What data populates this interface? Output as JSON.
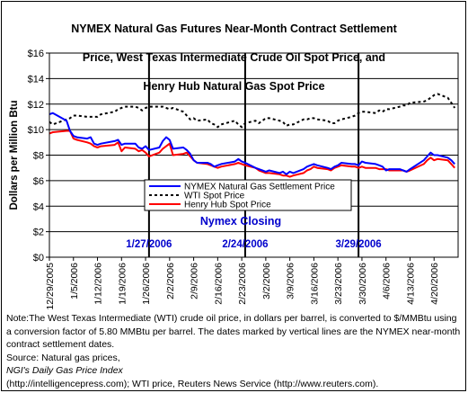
{
  "title_lines": [
    "NYMEX Natural Gas Futures Near-Month Contract Settlement",
    "Price, West Texas Intermediate Crude Oil Spot Price, and",
    "Henry Hub Natural Gas Spot Price"
  ],
  "note": "Note:The West Texas Intermediate (WTI) crude oil price, in dollars per barrel,  is converted to $/MMBtu using a conversion factor of 5.80 MMBtu per barrel.  The dates marked by vertical lines are the NYMEX near-month contract settlement dates.",
  "source": {
    "prefix": "Source: Natural gas prices, ",
    "italic": "NGI's Daily Gas Price Index",
    "suffix": " (http://intelligencepress.com); WTI price, Reuters News Service (http://www.reuters.com)."
  },
  "chart_data": {
    "type": "line",
    "ylabel": "Dollars per Million Btu",
    "ylim": [
      0,
      16
    ],
    "ytick_labels": [
      "$0",
      "$2",
      "$4",
      "$6",
      "$8",
      "$10",
      "$12",
      "$14",
      "$16"
    ],
    "xtick_labels": [
      "12/29/2005",
      "1/5/2006",
      "1/12/2006",
      "1/19/2006",
      "1/26/2006",
      "2/2/2006",
      "2/9/2006",
      "2/16/2006",
      "2/23/2006",
      "3/2/2006",
      "3/9/2006",
      "3/16/2006",
      "3/23/2006",
      "3/30/2006",
      "4/6/2006",
      "4/13/2006",
      "4/20/2006"
    ],
    "closing_label": "Nymex Closing",
    "closing_dates": [
      "1/27/2006",
      "2/24/2006",
      "3/29/2006"
    ],
    "grid": "horizontal",
    "legend_position": "lower-center",
    "colors": {
      "nymex": "#0000ff",
      "wti": "#000000",
      "henry": "#ff0000",
      "closing_text": "#0000cc"
    },
    "series": [
      {
        "name": "NYMEX Natural Gas Settlement Price",
        "style": "solid",
        "points": [
          [
            "12/29/2005",
            11.2
          ],
          [
            "12/30/2005",
            11.3
          ],
          [
            "1/3/2006",
            10.7
          ],
          [
            "1/4/2006",
            9.9
          ],
          [
            "1/5/2006",
            9.5
          ],
          [
            "1/6/2006",
            9.4
          ],
          [
            "1/9/2006",
            9.3
          ],
          [
            "1/10/2006",
            9.4
          ],
          [
            "1/11/2006",
            8.9
          ],
          [
            "1/12/2006",
            8.8
          ],
          [
            "1/13/2006",
            8.9
          ],
          [
            "1/17/2006",
            9.1
          ],
          [
            "1/18/2006",
            9.2
          ],
          [
            "1/19/2006",
            8.8
          ],
          [
            "1/20/2006",
            8.9
          ],
          [
            "1/23/2006",
            8.9
          ],
          [
            "1/24/2006",
            8.6
          ],
          [
            "1/25/2006",
            8.5
          ],
          [
            "1/26/2006",
            8.7
          ],
          [
            "1/27/2006",
            8.4
          ],
          [
            "1/30/2006",
            8.6
          ],
          [
            "1/31/2006",
            9.1
          ],
          [
            "2/1/2006",
            9.4
          ],
          [
            "2/2/2006",
            9.2
          ],
          [
            "2/3/2006",
            8.5
          ],
          [
            "2/6/2006",
            8.6
          ],
          [
            "2/7/2006",
            8.4
          ],
          [
            "2/8/2006",
            8.1
          ],
          [
            "2/9/2006",
            7.6
          ],
          [
            "2/10/2006",
            7.4
          ],
          [
            "2/13/2006",
            7.4
          ],
          [
            "2/14/2006",
            7.3
          ],
          [
            "2/15/2006",
            7.1
          ],
          [
            "2/16/2006",
            7.2
          ],
          [
            "2/17/2006",
            7.3
          ],
          [
            "2/21/2006",
            7.5
          ],
          [
            "2/22/2006",
            7.7
          ],
          [
            "2/23/2006",
            7.5
          ],
          [
            "2/24/2006",
            7.4
          ],
          [
            "2/27/2006",
            7.0
          ],
          [
            "2/28/2006",
            6.9
          ],
          [
            "3/1/2006",
            6.8
          ],
          [
            "3/2/2006",
            6.7
          ],
          [
            "3/3/2006",
            6.8
          ],
          [
            "3/6/2006",
            6.6
          ],
          [
            "3/7/2006",
            6.7
          ],
          [
            "3/8/2006",
            6.5
          ],
          [
            "3/9/2006",
            6.7
          ],
          [
            "3/10/2006",
            6.6
          ],
          [
            "3/13/2006",
            6.9
          ],
          [
            "3/14/2006",
            7.1
          ],
          [
            "3/15/2006",
            7.2
          ],
          [
            "3/16/2006",
            7.3
          ],
          [
            "3/17/2006",
            7.2
          ],
          [
            "3/20/2006",
            7.0
          ],
          [
            "3/21/2006",
            6.9
          ],
          [
            "3/22/2006",
            7.1
          ],
          [
            "3/23/2006",
            7.2
          ],
          [
            "3/24/2006",
            7.4
          ],
          [
            "3/27/2006",
            7.3
          ],
          [
            "3/28/2006",
            7.3
          ],
          [
            "3/29/2006",
            7.2
          ],
          [
            "3/30/2006",
            7.5
          ],
          [
            "3/31/2006",
            7.4
          ],
          [
            "4/3/2006",
            7.3
          ],
          [
            "4/4/2006",
            7.2
          ],
          [
            "4/5/2006",
            7.1
          ],
          [
            "4/6/2006",
            6.8
          ],
          [
            "4/7/2006",
            6.9
          ],
          [
            "4/10/2006",
            6.9
          ],
          [
            "4/11/2006",
            6.8
          ],
          [
            "4/12/2006",
            6.7
          ],
          [
            "4/13/2006",
            6.9
          ],
          [
            "4/17/2006",
            7.6
          ],
          [
            "4/18/2006",
            7.9
          ],
          [
            "4/19/2006",
            8.2
          ],
          [
            "4/20/2006",
            8.0
          ],
          [
            "4/21/2006",
            8.0
          ],
          [
            "4/24/2006",
            7.8
          ],
          [
            "4/25/2006",
            7.6
          ],
          [
            "4/26/2006",
            7.3
          ]
        ]
      },
      {
        "name": "WTI Spot Price",
        "style": "dotted",
        "points": [
          [
            "12/29/2005",
            10.6
          ],
          [
            "12/30/2005",
            10.4
          ],
          [
            "1/3/2006",
            10.8
          ],
          [
            "1/4/2006",
            10.9
          ],
          [
            "1/5/2006",
            11.1
          ],
          [
            "1/6/2006",
            11.1
          ],
          [
            "1/9/2006",
            11.0
          ],
          [
            "1/10/2006",
            11.0
          ],
          [
            "1/11/2006",
            11.0
          ],
          [
            "1/12/2006",
            11.0
          ],
          [
            "1/13/2006",
            11.2
          ],
          [
            "1/17/2006",
            11.4
          ],
          [
            "1/18/2006",
            11.6
          ],
          [
            "1/19/2006",
            11.7
          ],
          [
            "1/20/2006",
            11.8
          ],
          [
            "1/23/2006",
            11.8
          ],
          [
            "1/24/2006",
            11.7
          ],
          [
            "1/25/2006",
            11.5
          ],
          [
            "1/26/2006",
            11.7
          ],
          [
            "1/27/2006",
            11.8
          ],
          [
            "1/30/2006",
            11.8
          ],
          [
            "1/31/2006",
            11.8
          ],
          [
            "2/1/2006",
            11.7
          ],
          [
            "2/2/2006",
            11.6
          ],
          [
            "2/3/2006",
            11.7
          ],
          [
            "2/6/2006",
            11.4
          ],
          [
            "2/7/2006",
            11.1
          ],
          [
            "2/8/2006",
            10.8
          ],
          [
            "2/9/2006",
            10.9
          ],
          [
            "2/10/2006",
            10.7
          ],
          [
            "2/13/2006",
            10.8
          ],
          [
            "2/14/2006",
            10.5
          ],
          [
            "2/15/2006",
            10.4
          ],
          [
            "2/16/2006",
            10.2
          ],
          [
            "2/17/2006",
            10.4
          ],
          [
            "2/21/2006",
            10.7
          ],
          [
            "2/22/2006",
            10.4
          ],
          [
            "2/23/2006",
            10.2
          ],
          [
            "2/24/2006",
            10.5
          ],
          [
            "2/27/2006",
            10.7
          ],
          [
            "2/28/2006",
            10.5
          ],
          [
            "3/1/2006",
            10.7
          ],
          [
            "3/2/2006",
            10.9
          ],
          [
            "3/3/2006",
            10.9
          ],
          [
            "3/6/2006",
            10.7
          ],
          [
            "3/7/2006",
            10.6
          ],
          [
            "3/8/2006",
            10.3
          ],
          [
            "3/9/2006",
            10.4
          ],
          [
            "3/10/2006",
            10.4
          ],
          [
            "3/13/2006",
            10.8
          ],
          [
            "3/14/2006",
            10.8
          ],
          [
            "3/15/2006",
            10.9
          ],
          [
            "3/16/2006",
            10.9
          ],
          [
            "3/17/2006",
            10.8
          ],
          [
            "3/20/2006",
            10.7
          ],
          [
            "3/21/2006",
            10.5
          ],
          [
            "3/22/2006",
            10.5
          ],
          [
            "3/23/2006",
            10.7
          ],
          [
            "3/24/2006",
            10.8
          ],
          [
            "3/27/2006",
            11.0
          ],
          [
            "3/28/2006",
            11.1
          ],
          [
            "3/29/2006",
            11.3
          ],
          [
            "3/30/2006",
            11.4
          ],
          [
            "3/31/2006",
            11.4
          ],
          [
            "4/3/2006",
            11.3
          ],
          [
            "4/4/2006",
            11.5
          ],
          [
            "4/5/2006",
            11.4
          ],
          [
            "4/6/2006",
            11.6
          ],
          [
            "4/7/2006",
            11.6
          ],
          [
            "4/10/2006",
            11.8
          ],
          [
            "4/11/2006",
            11.9
          ],
          [
            "4/12/2006",
            11.9
          ],
          [
            "4/13/2006",
            12.1
          ],
          [
            "4/17/2006",
            12.2
          ],
          [
            "4/18/2006",
            12.3
          ],
          [
            "4/19/2006",
            12.5
          ],
          [
            "4/20/2006",
            12.7
          ],
          [
            "4/21/2006",
            12.8
          ],
          [
            "4/24/2006",
            12.5
          ],
          [
            "4/25/2006",
            12.1
          ],
          [
            "4/26/2006",
            11.7
          ]
        ]
      },
      {
        "name": "Henry Hub Spot Price",
        "style": "solid",
        "points": [
          [
            "12/29/2005",
            9.7
          ],
          [
            "12/30/2005",
            9.8
          ],
          [
            "1/3/2006",
            9.9
          ],
          [
            "1/4/2006",
            9.9
          ],
          [
            "1/5/2006",
            9.3
          ],
          [
            "1/6/2006",
            9.2
          ],
          [
            "1/9/2006",
            9.0
          ],
          [
            "1/10/2006",
            8.9
          ],
          [
            "1/11/2006",
            8.7
          ],
          [
            "1/12/2006",
            8.6
          ],
          [
            "1/13/2006",
            8.7
          ],
          [
            "1/17/2006",
            8.8
          ],
          [
            "1/18/2006",
            9.0
          ],
          [
            "1/19/2006",
            8.3
          ],
          [
            "1/20/2006",
            8.6
          ],
          [
            "1/23/2006",
            8.5
          ],
          [
            "1/24/2006",
            8.3
          ],
          [
            "1/25/2006",
            8.4
          ],
          [
            "1/26/2006",
            8.2
          ],
          [
            "1/27/2006",
            7.9
          ],
          [
            "1/30/2006",
            8.2
          ],
          [
            "1/31/2006",
            8.5
          ],
          [
            "2/1/2006",
            8.7
          ],
          [
            "2/2/2006",
            8.9
          ],
          [
            "2/3/2006",
            8.0
          ],
          [
            "2/6/2006",
            8.1
          ],
          [
            "2/7/2006",
            8.2
          ],
          [
            "2/8/2006",
            7.9
          ],
          [
            "2/9/2006",
            7.6
          ],
          [
            "2/10/2006",
            7.4
          ],
          [
            "2/13/2006",
            7.3
          ],
          [
            "2/14/2006",
            7.2
          ],
          [
            "2/15/2006",
            7.1
          ],
          [
            "2/16/2006",
            7.0
          ],
          [
            "2/17/2006",
            7.1
          ],
          [
            "2/21/2006",
            7.3
          ],
          [
            "2/22/2006",
            7.4
          ],
          [
            "2/23/2006",
            7.3
          ],
          [
            "2/24/2006",
            7.2
          ],
          [
            "2/27/2006",
            7.0
          ],
          [
            "2/28/2006",
            6.8
          ],
          [
            "3/1/2006",
            6.7
          ],
          [
            "3/2/2006",
            6.6
          ],
          [
            "3/3/2006",
            6.6
          ],
          [
            "3/6/2006",
            6.5
          ],
          [
            "3/7/2006",
            6.4
          ],
          [
            "3/8/2006",
            6.4
          ],
          [
            "3/9/2006",
            6.3
          ],
          [
            "3/10/2006",
            6.4
          ],
          [
            "3/13/2006",
            6.6
          ],
          [
            "3/14/2006",
            6.8
          ],
          [
            "3/15/2006",
            6.9
          ],
          [
            "3/16/2006",
            7.1
          ],
          [
            "3/17/2006",
            7.0
          ],
          [
            "3/20/2006",
            6.9
          ],
          [
            "3/21/2006",
            6.8
          ],
          [
            "3/22/2006",
            7.0
          ],
          [
            "3/23/2006",
            7.1
          ],
          [
            "3/24/2006",
            7.2
          ],
          [
            "3/27/2006",
            7.1
          ],
          [
            "3/28/2006",
            7.1
          ],
          [
            "3/29/2006",
            7.0
          ],
          [
            "3/30/2006",
            7.1
          ],
          [
            "3/31/2006",
            7.0
          ],
          [
            "4/3/2006",
            7.0
          ],
          [
            "4/4/2006",
            6.9
          ],
          [
            "4/5/2006",
            6.9
          ],
          [
            "4/6/2006",
            6.9
          ],
          [
            "4/7/2006",
            6.8
          ],
          [
            "4/10/2006",
            6.8
          ],
          [
            "4/11/2006",
            6.8
          ],
          [
            "4/12/2006",
            6.7
          ],
          [
            "4/13/2006",
            6.8
          ],
          [
            "4/17/2006",
            7.3
          ],
          [
            "4/18/2006",
            7.6
          ],
          [
            "4/19/2006",
            7.8
          ],
          [
            "4/20/2006",
            7.6
          ],
          [
            "4/21/2006",
            7.7
          ],
          [
            "4/24/2006",
            7.6
          ],
          [
            "4/25/2006",
            7.3
          ],
          [
            "4/26/2006",
            7.0
          ]
        ]
      }
    ]
  }
}
